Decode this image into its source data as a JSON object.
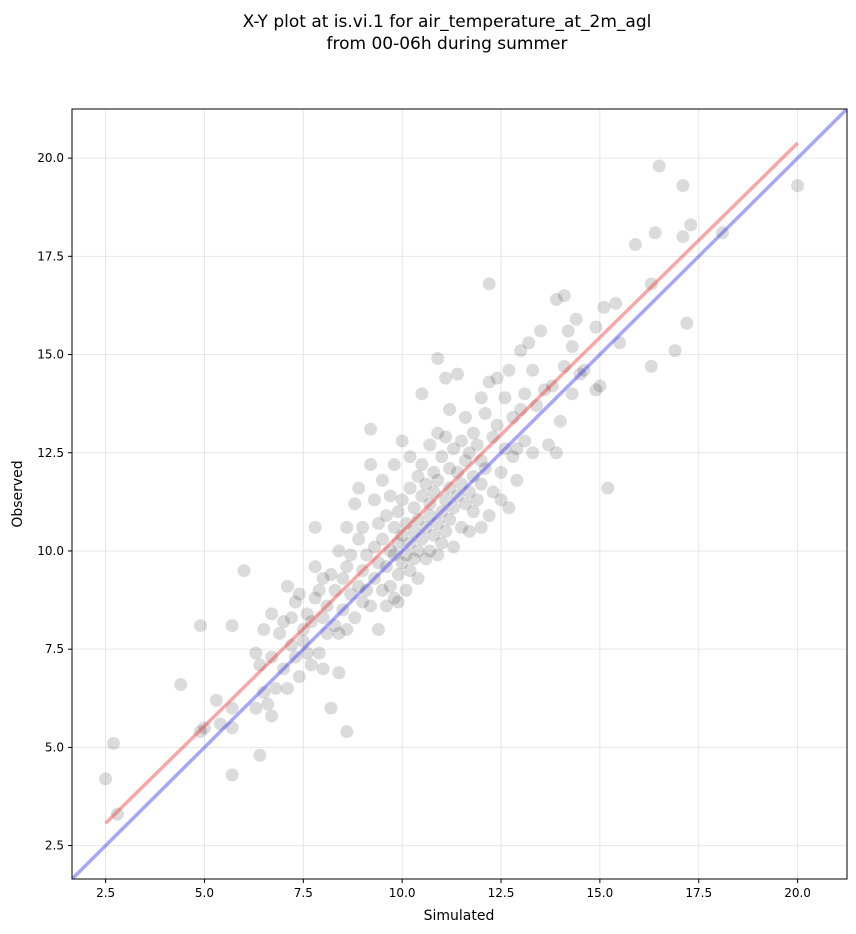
{
  "chart_data": {
    "type": "scatter",
    "title_line1": "X-Y plot at is.vi.1 for air_temperature_at_2m_agl",
    "title_line2": "from 00-06h during summer",
    "xlabel": "Simulated",
    "ylabel": "Observed",
    "xlim": [
      1.65,
      21.25
    ],
    "ylim": [
      1.65,
      21.25
    ],
    "xticks": [
      "2.5",
      "5.0",
      "7.5",
      "10.0",
      "12.5",
      "15.0",
      "17.5",
      "20.0"
    ],
    "yticks": [
      "2.5",
      "5.0",
      "7.5",
      "10.0",
      "12.5",
      "15.0",
      "17.5",
      "20.0"
    ],
    "grid": true,
    "colors": {
      "points": "#000000",
      "fit_line": "#ef3b3b",
      "identity_line": "#3b3bef",
      "grid": "#e6e6e6"
    },
    "fit_line": {
      "x": [
        2.5,
        20.0
      ],
      "y": [
        3.07,
        20.38
      ]
    },
    "identity_line": {
      "x": [
        1.65,
        21.25
      ],
      "y": [
        1.65,
        21.25
      ]
    },
    "points": [
      [
        2.5,
        4.2
      ],
      [
        2.7,
        5.1
      ],
      [
        2.8,
        3.3
      ],
      [
        4.4,
        6.6
      ],
      [
        4.9,
        8.1
      ],
      [
        4.9,
        5.4
      ],
      [
        5.0,
        5.5
      ],
      [
        5.3,
        6.2
      ],
      [
        5.4,
        5.6
      ],
      [
        5.7,
        8.1
      ],
      [
        5.7,
        4.3
      ],
      [
        5.7,
        5.5
      ],
      [
        5.7,
        6.0
      ],
      [
        6.0,
        9.5
      ],
      [
        6.3,
        6.0
      ],
      [
        6.3,
        7.4
      ],
      [
        6.4,
        4.8
      ],
      [
        6.4,
        7.1
      ],
      [
        6.5,
        6.4
      ],
      [
        6.5,
        8.0
      ],
      [
        6.6,
        6.1
      ],
      [
        6.7,
        5.8
      ],
      [
        6.7,
        7.3
      ],
      [
        6.7,
        8.4
      ],
      [
        6.8,
        6.5
      ],
      [
        6.9,
        7.9
      ],
      [
        7.0,
        8.2
      ],
      [
        7.0,
        7.0
      ],
      [
        7.1,
        6.5
      ],
      [
        7.1,
        9.1
      ],
      [
        7.2,
        7.6
      ],
      [
        7.2,
        8.3
      ],
      [
        7.3,
        7.3
      ],
      [
        7.3,
        8.7
      ],
      [
        7.4,
        6.8
      ],
      [
        7.4,
        8.9
      ],
      [
        7.5,
        7.7
      ],
      [
        7.5,
        8.0
      ],
      [
        7.6,
        7.4
      ],
      [
        7.6,
        8.4
      ],
      [
        7.7,
        7.1
      ],
      [
        7.7,
        8.2
      ],
      [
        7.8,
        8.8
      ],
      [
        7.8,
        10.6
      ],
      [
        7.8,
        9.6
      ],
      [
        7.9,
        7.4
      ],
      [
        7.9,
        9.0
      ],
      [
        8.0,
        8.3
      ],
      [
        8.0,
        9.3
      ],
      [
        8.0,
        7.0
      ],
      [
        8.1,
        7.9
      ],
      [
        8.1,
        8.6
      ],
      [
        8.2,
        6.0
      ],
      [
        8.2,
        9.4
      ],
      [
        8.3,
        8.1
      ],
      [
        8.3,
        9.0
      ],
      [
        8.4,
        6.9
      ],
      [
        8.4,
        7.9
      ],
      [
        8.4,
        10.0
      ],
      [
        8.5,
        8.5
      ],
      [
        8.5,
        9.3
      ],
      [
        8.6,
        5.4
      ],
      [
        8.6,
        8.0
      ],
      [
        8.6,
        9.6
      ],
      [
        8.6,
        10.6
      ],
      [
        8.7,
        8.9
      ],
      [
        8.7,
        9.9
      ],
      [
        8.8,
        8.3
      ],
      [
        8.8,
        11.2
      ],
      [
        8.9,
        9.1
      ],
      [
        8.9,
        10.3
      ],
      [
        8.9,
        11.6
      ],
      [
        9.0,
        8.7
      ],
      [
        9.0,
        9.5
      ],
      [
        9.0,
        10.6
      ],
      [
        9.1,
        9.0
      ],
      [
        9.1,
        9.9
      ],
      [
        9.2,
        8.6
      ],
      [
        9.2,
        12.2
      ],
      [
        9.2,
        13.1
      ],
      [
        9.3,
        9.3
      ],
      [
        9.3,
        10.1
      ],
      [
        9.3,
        11.3
      ],
      [
        9.4,
        8.0
      ],
      [
        9.4,
        9.7
      ],
      [
        9.4,
        10.7
      ],
      [
        9.5,
        9.0
      ],
      [
        9.5,
        10.3
      ],
      [
        9.5,
        11.8
      ],
      [
        9.6,
        8.6
      ],
      [
        9.6,
        9.6
      ],
      [
        9.6,
        10.9
      ],
      [
        9.7,
        9.1
      ],
      [
        9.7,
        10.0
      ],
      [
        9.7,
        11.4
      ],
      [
        9.8,
        8.8
      ],
      [
        9.8,
        9.9
      ],
      [
        9.8,
        10.6
      ],
      [
        9.8,
        12.2
      ],
      [
        9.9,
        8.7
      ],
      [
        9.9,
        9.4
      ],
      [
        9.9,
        10.2
      ],
      [
        9.9,
        11.0
      ],
      [
        10.0,
        9.7
      ],
      [
        10.0,
        10.4
      ],
      [
        10.0,
        11.3
      ],
      [
        10.0,
        12.8
      ],
      [
        10.1,
        9.0
      ],
      [
        10.1,
        9.9
      ],
      [
        10.1,
        10.7
      ],
      [
        10.2,
        9.5
      ],
      [
        10.2,
        10.2
      ],
      [
        10.2,
        11.6
      ],
      [
        10.2,
        12.4
      ],
      [
        10.3,
        9.8
      ],
      [
        10.3,
        10.5
      ],
      [
        10.3,
        11.1
      ],
      [
        10.4,
        9.3
      ],
      [
        10.4,
        10.0
      ],
      [
        10.4,
        10.8
      ],
      [
        10.4,
        11.9
      ],
      [
        10.5,
        10.3
      ],
      [
        10.5,
        11.4
      ],
      [
        10.5,
        12.2
      ],
      [
        10.5,
        14.0
      ],
      [
        10.6,
        9.8
      ],
      [
        10.6,
        10.6
      ],
      [
        10.6,
        11.7
      ],
      [
        10.7,
        10.0
      ],
      [
        10.7,
        10.9
      ],
      [
        10.7,
        11.2
      ],
      [
        10.7,
        12.7
      ],
      [
        10.8,
        10.4
      ],
      [
        10.8,
        11.5
      ],
      [
        10.8,
        12.0
      ],
      [
        10.9,
        9.9
      ],
      [
        10.9,
        10.7
      ],
      [
        10.9,
        11.8
      ],
      [
        10.9,
        13.0
      ],
      [
        10.9,
        14.9
      ],
      [
        11.0,
        10.2
      ],
      [
        11.0,
        11.0
      ],
      [
        11.0,
        12.4
      ],
      [
        11.1,
        10.5
      ],
      [
        11.1,
        11.3
      ],
      [
        11.1,
        12.9
      ],
      [
        11.1,
        14.4
      ],
      [
        11.2,
        10.8
      ],
      [
        11.2,
        11.6
      ],
      [
        11.2,
        12.1
      ],
      [
        11.2,
        13.6
      ],
      [
        11.3,
        10.1
      ],
      [
        11.3,
        11.1
      ],
      [
        11.3,
        12.6
      ],
      [
        11.4,
        11.4
      ],
      [
        11.4,
        12.0
      ],
      [
        11.4,
        14.5
      ],
      [
        11.5,
        10.6
      ],
      [
        11.5,
        11.7
      ],
      [
        11.5,
        12.8
      ],
      [
        11.6,
        11.2
      ],
      [
        11.6,
        12.3
      ],
      [
        11.6,
        13.4
      ],
      [
        11.7,
        10.5
      ],
      [
        11.7,
        11.5
      ],
      [
        11.7,
        12.5
      ],
      [
        11.8,
        11.0
      ],
      [
        11.8,
        11.9
      ],
      [
        11.8,
        13.0
      ],
      [
        11.9,
        11.3
      ],
      [
        11.9,
        12.7
      ],
      [
        12.0,
        10.6
      ],
      [
        12.0,
        11.7
      ],
      [
        12.0,
        12.3
      ],
      [
        12.0,
        13.9
      ],
      [
        12.1,
        12.1
      ],
      [
        12.1,
        13.5
      ],
      [
        12.2,
        14.3
      ],
      [
        12.2,
        16.8
      ],
      [
        12.2,
        10.9
      ],
      [
        12.3,
        11.5
      ],
      [
        12.3,
        12.9
      ],
      [
        12.4,
        13.2
      ],
      [
        12.4,
        14.4
      ],
      [
        12.5,
        11.3
      ],
      [
        12.5,
        12.0
      ],
      [
        12.6,
        12.6
      ],
      [
        12.6,
        13.9
      ],
      [
        12.7,
        11.1
      ],
      [
        12.7,
        14.6
      ],
      [
        12.8,
        12.4
      ],
      [
        12.8,
        13.4
      ],
      [
        12.9,
        11.8
      ],
      [
        12.9,
        12.6
      ],
      [
        13.0,
        13.6
      ],
      [
        13.0,
        15.1
      ],
      [
        13.1,
        12.8
      ],
      [
        13.1,
        14.0
      ],
      [
        13.2,
        15.3
      ],
      [
        13.3,
        12.5
      ],
      [
        13.3,
        14.6
      ],
      [
        13.4,
        13.7
      ],
      [
        13.5,
        15.6
      ],
      [
        13.6,
        14.1
      ],
      [
        13.7,
        12.7
      ],
      [
        13.8,
        14.2
      ],
      [
        13.9,
        12.5
      ],
      [
        13.9,
        16.4
      ],
      [
        14.0,
        13.3
      ],
      [
        14.1,
        14.7
      ],
      [
        14.1,
        16.5
      ],
      [
        14.2,
        15.6
      ],
      [
        14.3,
        14.0
      ],
      [
        14.3,
        15.2
      ],
      [
        14.4,
        15.9
      ],
      [
        14.5,
        14.5
      ],
      [
        14.6,
        14.6
      ],
      [
        14.9,
        14.1
      ],
      [
        14.9,
        15.7
      ],
      [
        15.0,
        14.2
      ],
      [
        15.1,
        16.2
      ],
      [
        15.2,
        11.6
      ],
      [
        15.4,
        16.3
      ],
      [
        15.5,
        15.3
      ],
      [
        15.9,
        17.8
      ],
      [
        16.3,
        16.8
      ],
      [
        16.3,
        14.7
      ],
      [
        16.4,
        18.1
      ],
      [
        16.5,
        19.8
      ],
      [
        16.9,
        15.1
      ],
      [
        17.1,
        18.0
      ],
      [
        17.1,
        19.3
      ],
      [
        17.2,
        15.8
      ],
      [
        17.3,
        18.3
      ],
      [
        18.1,
        18.1
      ],
      [
        20.0,
        19.3
      ]
    ]
  }
}
